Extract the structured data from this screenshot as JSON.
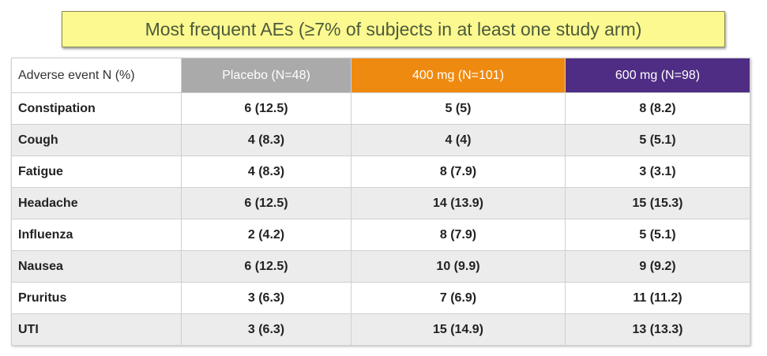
{
  "title": "Most frequent AEs (≥7% of subjects in at least one study arm)",
  "table": {
    "headers": [
      "Adverse event N (%)",
      "Placebo (N=48)",
      "400 mg (N=101)",
      "600 mg (N=98)"
    ],
    "header_colors": [
      "#ffffff",
      "#aaaaaa",
      "#ef8a10",
      "#4f2d84"
    ],
    "rows": [
      [
        "Constipation",
        "6 (12.5)",
        "5 (5)",
        "8 (8.2)"
      ],
      [
        "Cough",
        "4 (8.3)",
        "4 (4)",
        "5 (5.1)"
      ],
      [
        "Fatigue",
        "4 (8.3)",
        "8 (7.9)",
        "3 (3.1)"
      ],
      [
        "Headache",
        "6 (12.5)",
        "14 (13.9)",
        "15 (15.3)"
      ],
      [
        "Influenza",
        "2 (4.2)",
        "8 (7.9)",
        "5 (5.1)"
      ],
      [
        "Nausea",
        "6 (12.5)",
        "10 (9.9)",
        "9 (9.2)"
      ],
      [
        "Pruritus",
        "3 (6.3)",
        "7 (6.9)",
        "11 (11.2)"
      ],
      [
        "UTI",
        "3 (6.3)",
        "15 (14.9)",
        "13 (13.3)"
      ]
    ]
  }
}
